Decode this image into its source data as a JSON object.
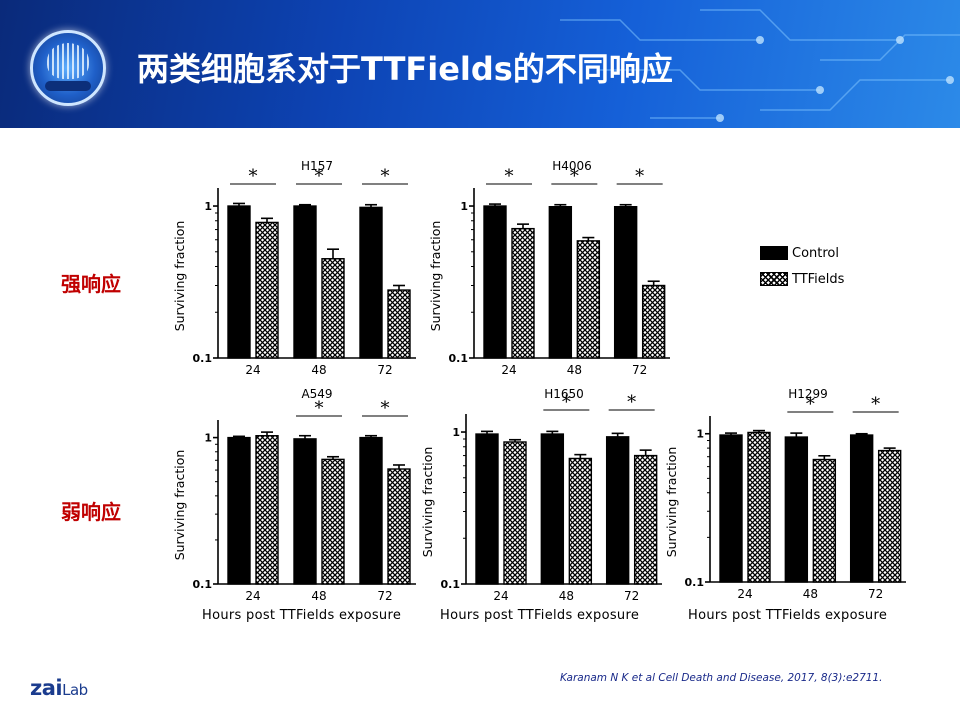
{
  "header": {
    "title": "两类细胞系对于TTFields的不同响应"
  },
  "row_labels": {
    "strong": "强响应",
    "weak": "弱响应"
  },
  "legend": {
    "control": "Control",
    "ttfields": "TTFields"
  },
  "footer": {
    "citation": "Karanam N K et al  Cell Death and Disease, 2017, 8(3):e2711.",
    "brand_main": "zai",
    "brand_lab": "Lab"
  },
  "colors": {
    "banner": "#0d43b3",
    "row_label": "#c00000",
    "citation": "#1a2a8a",
    "brand": "#1b3c8e"
  },
  "chart_data": [
    {
      "type": "bar",
      "title": "H157",
      "ylabel": "Surviving fraction",
      "xlabel": "",
      "categories": [
        "24",
        "48",
        "72"
      ],
      "yscale": "log",
      "ylim": [
        0.1,
        1.2
      ],
      "y_ticks": [
        "1",
        "0.1"
      ],
      "series": [
        {
          "name": "Control",
          "values": [
            1.0,
            1.0,
            0.98
          ],
          "err": [
            0.04,
            0.02,
            0.04
          ]
        },
        {
          "name": "TTFields",
          "values": [
            0.78,
            0.45,
            0.28
          ],
          "err": [
            0.05,
            0.07,
            0.02
          ]
        }
      ],
      "significance": [
        "*",
        "*",
        "*"
      ]
    },
    {
      "type": "bar",
      "title": "H4006",
      "ylabel": "Surviving fraction",
      "xlabel": "",
      "categories": [
        "24",
        "48",
        "72"
      ],
      "yscale": "log",
      "ylim": [
        0.1,
        1.2
      ],
      "y_ticks": [
        "1",
        "0.1"
      ],
      "series": [
        {
          "name": "Control",
          "values": [
            1.0,
            0.99,
            0.99
          ],
          "err": [
            0.03,
            0.03,
            0.03
          ]
        },
        {
          "name": "TTFields",
          "values": [
            0.71,
            0.59,
            0.3
          ],
          "err": [
            0.05,
            0.03,
            0.02
          ]
        }
      ],
      "significance": [
        "*",
        "*",
        "*"
      ]
    },
    {
      "type": "bar",
      "title": "A549",
      "ylabel": "Surviving fraction",
      "xlabel": "Hours post TTFields exposure",
      "categories": [
        "24",
        "48",
        "72"
      ],
      "yscale": "log",
      "ylim": [
        0.1,
        1.2
      ],
      "y_ticks": [
        "1",
        "0.1"
      ],
      "series": [
        {
          "name": "Control",
          "values": [
            1.0,
            0.98,
            1.0
          ],
          "err": [
            0.02,
            0.05,
            0.03
          ]
        },
        {
          "name": "TTFields",
          "values": [
            1.03,
            0.71,
            0.61
          ],
          "err": [
            0.06,
            0.03,
            0.04
          ]
        }
      ],
      "significance": [
        "",
        "*",
        "*"
      ]
    },
    {
      "type": "bar",
      "title": "H1650",
      "ylabel": "Surviving fraction",
      "xlabel": "Hours post TTFields exposure",
      "categories": [
        "24",
        "48",
        "72"
      ],
      "yscale": "log",
      "ylim": [
        0.1,
        1.2
      ],
      "y_ticks": [
        "1",
        "0.1"
      ],
      "series": [
        {
          "name": "Control",
          "values": [
            0.97,
            0.97,
            0.93
          ],
          "err": [
            0.04,
            0.04,
            0.05
          ]
        },
        {
          "name": "TTFields",
          "values": [
            0.86,
            0.67,
            0.7
          ],
          "err": [
            0.03,
            0.04,
            0.06
          ]
        }
      ],
      "significance": [
        "",
        "*",
        "*"
      ]
    },
    {
      "type": "bar",
      "title": "H1299",
      "ylabel": "Surviving fraction",
      "xlabel": "Hours post TTFields exposure",
      "categories": [
        "24",
        "48",
        "72"
      ],
      "yscale": "log",
      "ylim": [
        0.1,
        1.2
      ],
      "y_ticks": [
        "1",
        "0.1"
      ],
      "series": [
        {
          "name": "Control",
          "values": [
            0.98,
            0.95,
            0.98
          ],
          "err": [
            0.03,
            0.06,
            0.02
          ]
        },
        {
          "name": "TTFields",
          "values": [
            1.02,
            0.67,
            0.77
          ],
          "err": [
            0.03,
            0.04,
            0.03
          ]
        }
      ],
      "significance": [
        "",
        "*",
        "*"
      ]
    }
  ]
}
